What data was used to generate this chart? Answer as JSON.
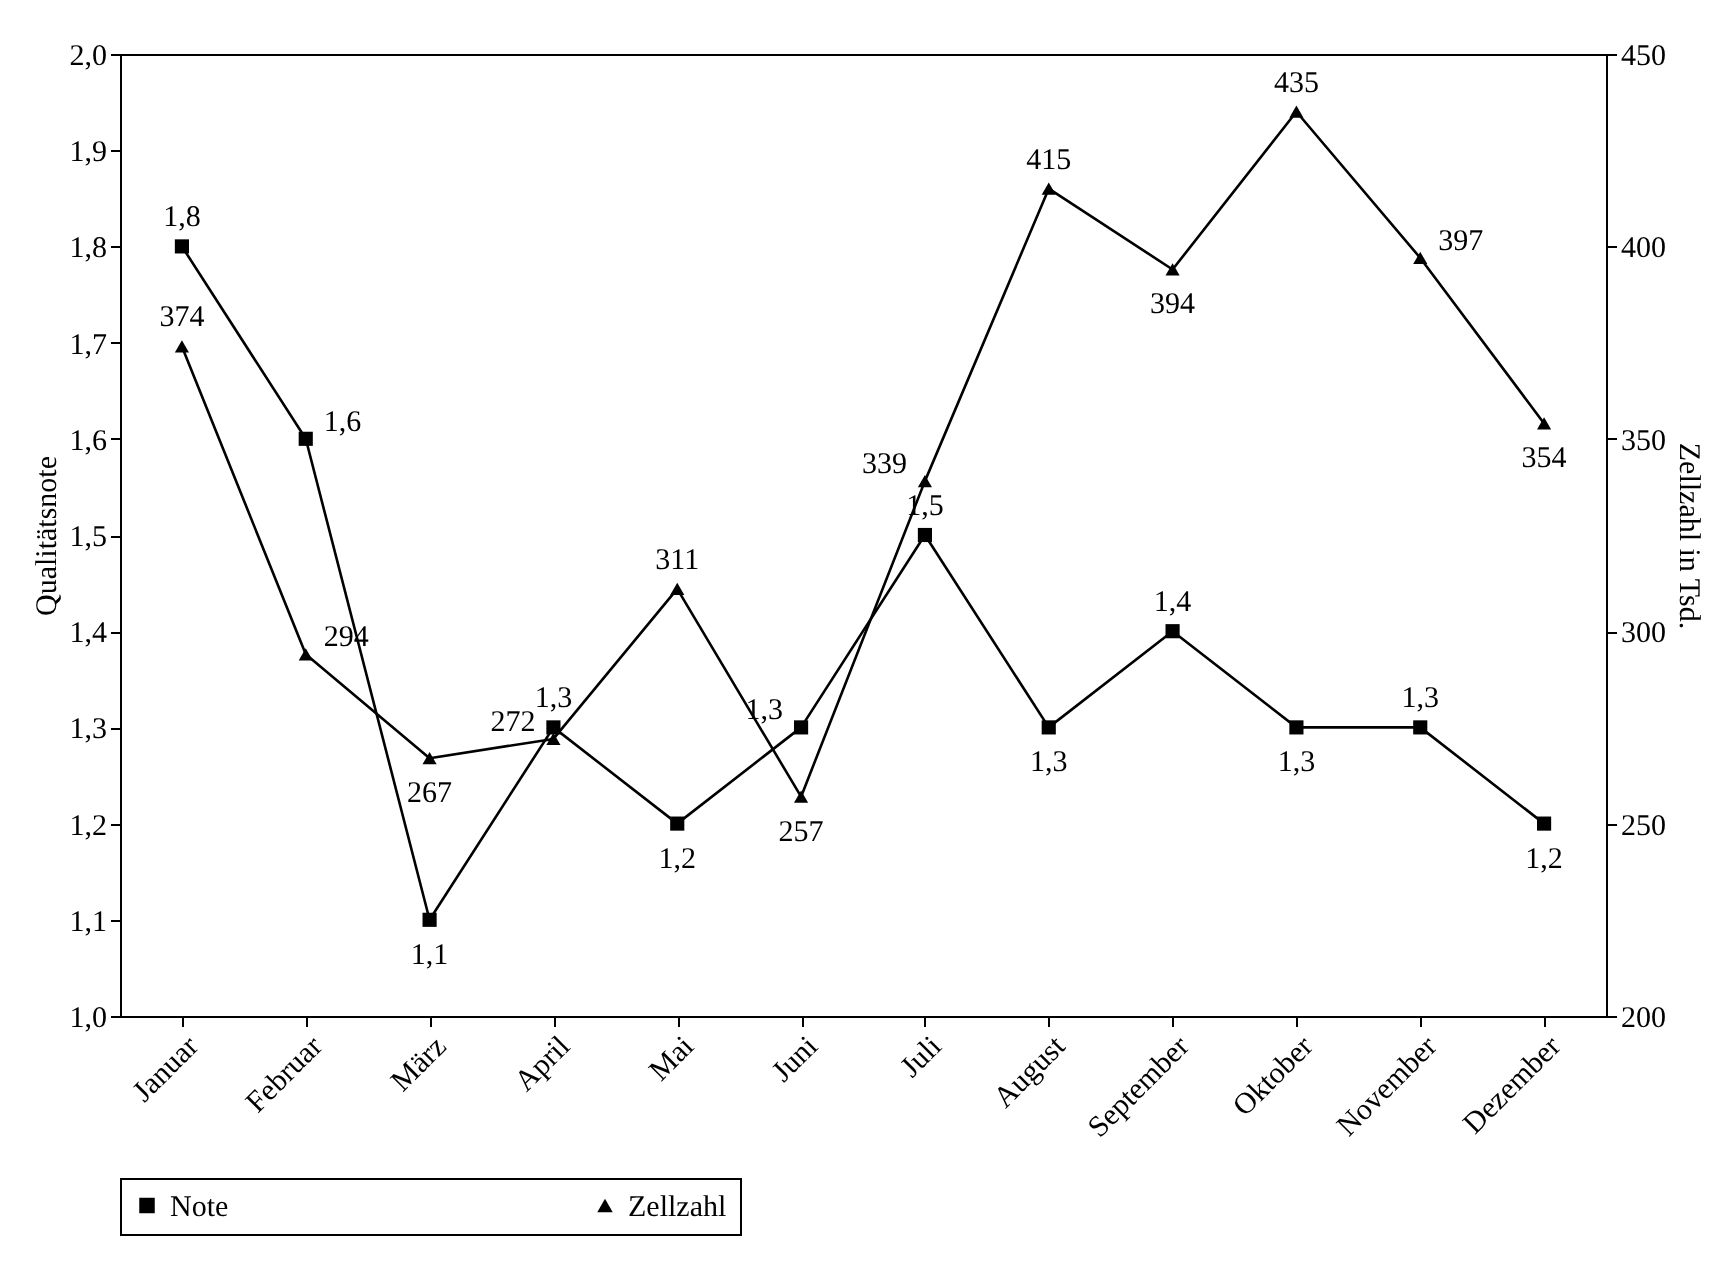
{
  "chart_data": {
    "type": "line",
    "ylabel": "Qualitätsnote",
    "y2label": "Zellzahl in Tsd.",
    "categories": [
      "Januar",
      "Februar",
      "März",
      "April",
      "Mai",
      "Juni",
      "Juli",
      "August",
      "September",
      "Oktober",
      "November",
      "Dezember"
    ],
    "series": [
      {
        "name": "Note",
        "color": "#000000",
        "marker": "square",
        "values": [
          1.8,
          1.6,
          1.1,
          1.3,
          1.2,
          1.3,
          1.5,
          1.3,
          1.4,
          1.3,
          1.3,
          1.2
        ],
        "value_labels": [
          "1,8",
          "1,6",
          "1,1",
          "1,3",
          "1,2",
          "1,3",
          "1,5",
          "1,3",
          "1,4",
          "1,3",
          "1,3",
          "1,2"
        ]
      },
      {
        "name": "Zellzahl",
        "color": "#000000",
        "marker": "triangle",
        "axis": "y2",
        "values": [
          374,
          294,
          267,
          272,
          311,
          257,
          339,
          415,
          394,
          435,
          397,
          354
        ]
      }
    ],
    "ylim": [
      1.0,
      2.0
    ],
    "yticks": [
      {
        "value": 1.0,
        "label": "1,0"
      },
      {
        "value": 1.1,
        "label": "1,1"
      },
      {
        "value": 1.2,
        "label": "1,2"
      },
      {
        "value": 1.3,
        "label": "1,3"
      },
      {
        "value": 1.4,
        "label": "1,4"
      },
      {
        "value": 1.5,
        "label": "1,5"
      },
      {
        "value": 1.6,
        "label": "1,6"
      },
      {
        "value": 1.7,
        "label": "1,7"
      },
      {
        "value": 1.8,
        "label": "1,8"
      },
      {
        "value": 1.9,
        "label": "1,9"
      },
      {
        "value": 2.0,
        "label": "2,0"
      }
    ],
    "y2lim": [
      200,
      450
    ],
    "y2ticks": [
      200,
      250,
      300,
      350,
      400,
      450
    ],
    "data_labels": true,
    "grid": false,
    "legend": "bottom",
    "line_style": "solid"
  }
}
